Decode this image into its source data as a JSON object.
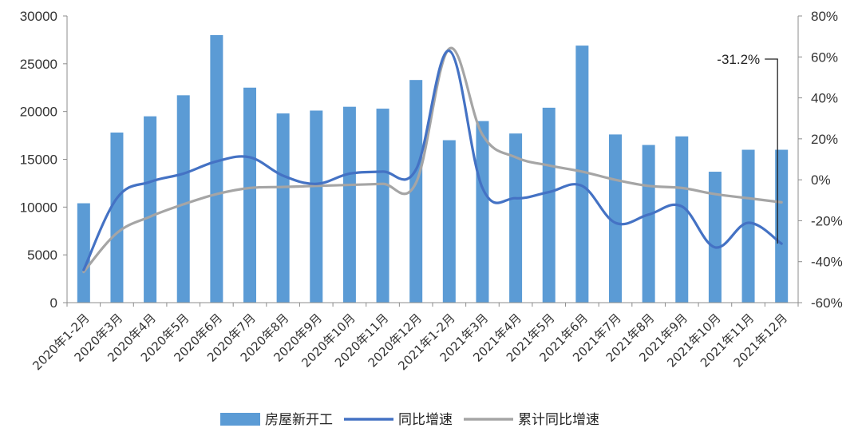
{
  "chart_data": {
    "type": "bar",
    "categories": [
      "2020年1-2月",
      "2020年3月",
      "2020年4月",
      "2020年5月",
      "2020年6月",
      "2020年7月",
      "2020年8月",
      "2020年9月",
      "2020年10月",
      "2020年11月",
      "2020年12月",
      "2021年1-2月",
      "2021年3月",
      "2021年4月",
      "2021年5月",
      "2021年6月",
      "2021年7月",
      "2021年8月",
      "2021年9月",
      "2021年10月",
      "2021年11月",
      "2021年12月"
    ],
    "series": [
      {
        "name": "房屋新开工",
        "type": "bar",
        "axis": "left",
        "color": "#5b9bd5",
        "values": [
          10400,
          17800,
          19500,
          21700,
          28000,
          22500,
          19800,
          20100,
          20500,
          20300,
          23300,
          17000,
          19000,
          17700,
          20400,
          26900,
          17600,
          16500,
          17400,
          13700,
          16000,
          16000
        ]
      },
      {
        "name": "同比增速",
        "type": "line",
        "axis": "right",
        "color": "#4472c4",
        "values": [
          -44,
          -9,
          -1,
          3,
          9,
          11,
          2,
          -2,
          3,
          4,
          5,
          63,
          -4,
          -9,
          -6,
          -3,
          -21,
          -17,
          -13,
          -33,
          -21,
          -31.2
        ]
      },
      {
        "name": "累计同比增速",
        "type": "line",
        "axis": "right",
        "color": "#a5a5a5",
        "values": [
          -45,
          -26,
          -18,
          -12,
          -7,
          -4,
          -3.5,
          -3,
          -2.5,
          -2,
          -1.5,
          64,
          22,
          11,
          7,
          4,
          0,
          -3,
          -4,
          -7,
          -9,
          -11
        ]
      }
    ],
    "y_left": {
      "ylim": [
        0,
        30000
      ],
      "ticks": [
        "0",
        "5000",
        "10000",
        "15000",
        "20000",
        "25000",
        "30000"
      ]
    },
    "y_right": {
      "ylim": [
        -60,
        80
      ],
      "ticks": [
        "-60%",
        "-40%",
        "-20%",
        "0%",
        "20%",
        "40%",
        "60%",
        "80%"
      ]
    },
    "annotation": {
      "text": "-31.2%",
      "series_index": 1,
      "point_index": 21
    },
    "legend": {
      "position": "bottom"
    },
    "grid": false
  }
}
